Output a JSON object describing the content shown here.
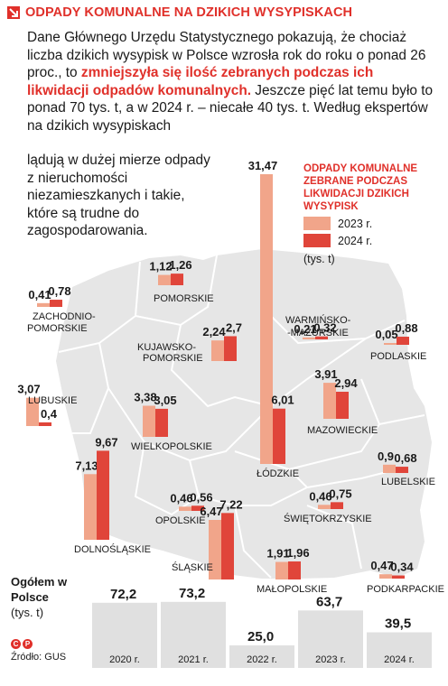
{
  "header": {
    "title": "ODPADY KOMUNALNE NA DZIKICH WYSYPISKACH"
  },
  "intro": {
    "part1": "Dane Głównego Urzędu Statystycznego pokazują, że chociaż liczba dzikich wysypisk w Polsce wzrosła rok do roku o ponad 26 proc., to ",
    "highlight": "zmniejszyła się ilość zebranych podczas ich likwidacji odpadów komunalnych.",
    "part2": " Jeszcze pięć lat temu było to ponad 70 tys. t, a w 2024 r. – niecałe 40 tys. t. Według ekspertów na dzikich wysypiskach"
  },
  "side_text": "lądują w dużej mierze odpady z nieruchomości niezamieszkanych i takie, które są trudne do zagospodarowania.",
  "legend": {
    "title": "ODPADY KOMUNALNE ZEBRANE PODCZAS LIKWIDACJI DZIKICH WYSYPISK",
    "items": [
      {
        "label": "2023 r.",
        "color": "#f1a58a"
      },
      {
        "label": "2024 r.",
        "color": "#e0453a"
      }
    ],
    "unit": "(tys. t)"
  },
  "totals": {
    "title": "Ogółem w Polsce",
    "unit": "(tys. t)"
  },
  "footer": {
    "icons": [
      "C",
      "P"
    ],
    "source": "Źródło: GUS"
  },
  "colors": {
    "accent": "#e0302a",
    "bar2023": "#f1a58a",
    "bar2024": "#e0453a",
    "map": "#e6e6e6",
    "totals_bar": "#e0e0e0"
  },
  "chart_data": [
    {
      "type": "bar",
      "title": "ODPADY KOMUNALNE ZEBRANE PODCZAS LIKWIDACJI DZIKICH WYSYPISK",
      "unit": "(tys. t)",
      "series_names": [
        "2023 r.",
        "2024 r."
      ],
      "regions": [
        {
          "name": "ZACHODNIO-POMORSKIE",
          "values": [
            0.41,
            0.78
          ]
        },
        {
          "name": "POMORSKIE",
          "values": [
            1.12,
            1.26
          ]
        },
        {
          "name": "WARMIŃSKO--MAZURSKIE",
          "values": [
            0.21,
            0.32
          ]
        },
        {
          "name": "PODLASKIE",
          "values": [
            0.05,
            0.88
          ]
        },
        {
          "name": "KUJAWSKO-POMORSKIE",
          "values": [
            2.24,
            2.7
          ]
        },
        {
          "name": "LUBUSKIE",
          "values": [
            3.07,
            0.4
          ]
        },
        {
          "name": "WIELKOPOLSKIE",
          "values": [
            3.38,
            3.05
          ]
        },
        {
          "name": "MAZOWIECKIE",
          "values": [
            3.91,
            2.94
          ]
        },
        {
          "name": "ŁÓDZKIE",
          "values": [
            31.47,
            6.01
          ]
        },
        {
          "name": "LUBELSKIE",
          "values": [
            0.9,
            0.68
          ]
        },
        {
          "name": "DOLNOŚLĄSKIE",
          "values": [
            7.13,
            9.67
          ]
        },
        {
          "name": "OPOLSKIE",
          "values": [
            0.46,
            0.56
          ]
        },
        {
          "name": "ŚLĄSKIE",
          "values": [
            6.47,
            7.22
          ]
        },
        {
          "name": "ŚWIĘTOKRZYSKIE",
          "values": [
            0.46,
            0.75
          ]
        },
        {
          "name": "MAŁOPOLSKIE",
          "values": [
            1.91,
            1.96
          ]
        },
        {
          "name": "PODKARPACKIE",
          "values": [
            0.47,
            0.34
          ]
        }
      ]
    },
    {
      "type": "bar",
      "title": "Ogółem w Polsce",
      "unit": "(tys. t)",
      "categories": [
        "2020 r.",
        "2021 r.",
        "2022 r.",
        "2023 r.",
        "2024 r."
      ],
      "values": [
        72.2,
        73.2,
        25.0,
        63.7,
        39.5
      ],
      "value_labels": [
        "72,2",
        "73,2",
        "25,0",
        "63,7",
        "39,5"
      ]
    }
  ]
}
